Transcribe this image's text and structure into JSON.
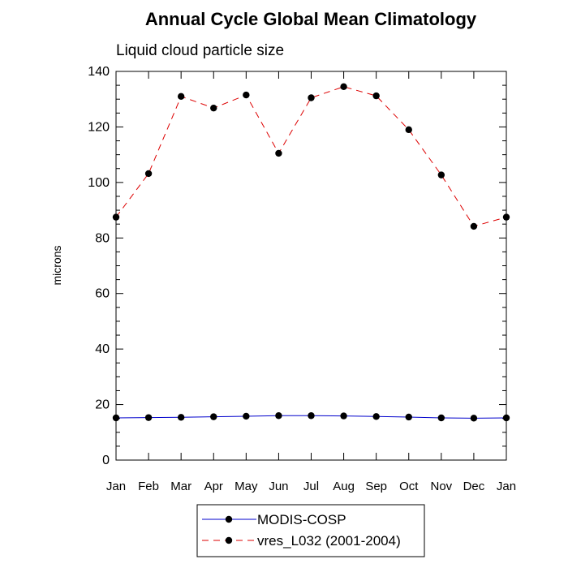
{
  "chart_data": {
    "type": "line",
    "title": "Annual Cycle Global Mean Climatology",
    "subtitle": "Liquid cloud particle size",
    "xlabel": "",
    "ylabel": "microns",
    "categories": [
      "Jan",
      "Feb",
      "Mar",
      "Apr",
      "May",
      "Jun",
      "Jul",
      "Aug",
      "Sep",
      "Oct",
      "Nov",
      "Dec",
      "Jan"
    ],
    "ylim": [
      0,
      140
    ],
    "yticks": [
      0,
      20,
      40,
      60,
      80,
      100,
      120,
      140
    ],
    "grid": false,
    "legend_position": "bottom",
    "series": [
      {
        "name": "MODIS-COSP",
        "color": "#0000cc",
        "line_style": "solid",
        "marker": "filled-circle",
        "values": [
          15.2,
          15.3,
          15.4,
          15.6,
          15.8,
          16.0,
          16.0,
          15.9,
          15.7,
          15.5,
          15.2,
          15.1,
          15.2
        ]
      },
      {
        "name": "vres_L032 (2001-2004)",
        "color": "#dd0000",
        "line_style": "dashed",
        "marker": "filled-circle",
        "values": [
          87.5,
          103.2,
          131.0,
          126.8,
          131.5,
          110.5,
          130.5,
          134.5,
          131.2,
          119.0,
          102.7,
          84.2,
          87.5
        ]
      }
    ]
  }
}
